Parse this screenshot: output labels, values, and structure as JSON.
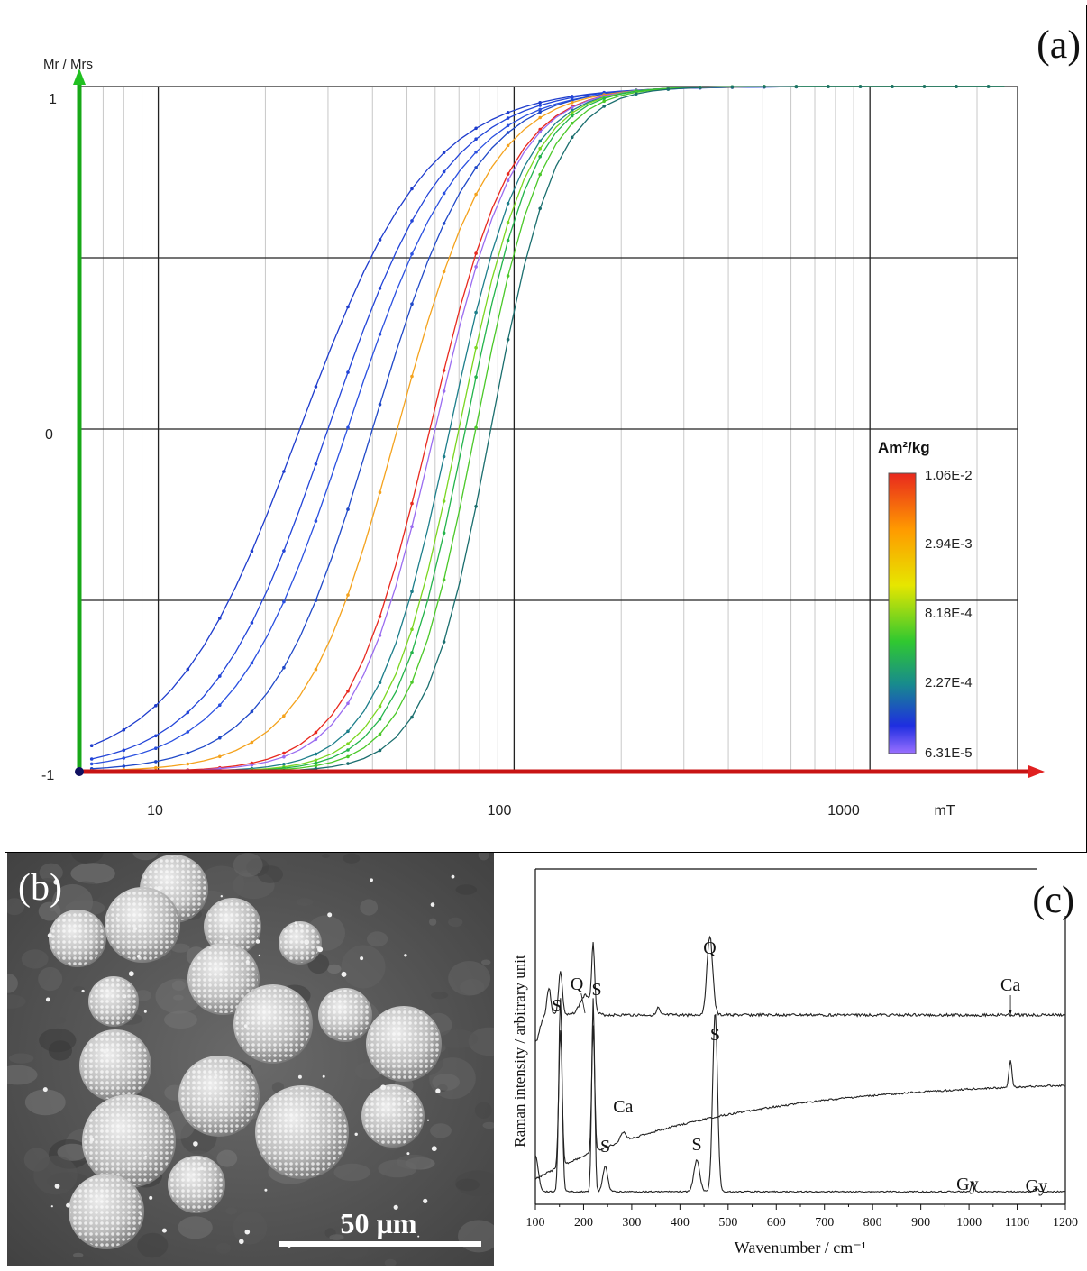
{
  "chart_data": [
    {
      "panel": "(a)",
      "type": "line",
      "ylabel": "Mr / Mrs",
      "xunit": "mT",
      "xscale": "log",
      "xlim": [
        6,
        2600
      ],
      "ylim": [
        -1,
        1
      ],
      "x_ticks": [
        "10",
        "100",
        "1000"
      ],
      "y_ticks": [
        "1",
        "0",
        "-1"
      ],
      "grid": true,
      "colorbar": {
        "title": "Am²/kg",
        "labels": [
          "1.06E-2",
          "2.94E-3",
          "8.18E-4",
          "2.27E-4",
          "6.31E-5"
        ],
        "colors": [
          "#e8281e",
          "#ff8c00",
          "#e8e800",
          "#34c834",
          "#1a8a8a",
          "#1e2ee0",
          "#9a70ff"
        ]
      },
      "series": [
        {
          "color": "#1e3ccd",
          "b": 25,
          "k": 2.4
        },
        {
          "color": "#2244d8",
          "b": 30,
          "k": 2.6
        },
        {
          "color": "#2a50e0",
          "b": 34,
          "k": 2.7
        },
        {
          "color": "#1f48c8",
          "b": 40,
          "k": 3.0
        },
        {
          "color": "#f4a21c",
          "b": 47,
          "k": 3.3
        },
        {
          "color": "#e8281e",
          "b": 58,
          "k": 3.8
        },
        {
          "color": "#1c7e8a",
          "b": 66,
          "k": 4.2
        },
        {
          "color": "#9a6cf0",
          "b": 60,
          "k": 3.9
        },
        {
          "color": "#7ad620",
          "b": 70,
          "k": 4.4
        },
        {
          "color": "#22b44a",
          "b": 73,
          "k": 4.5
        },
        {
          "color": "#4ac828",
          "b": 78,
          "k": 4.6
        },
        {
          "color": "#1a6e6e",
          "b": 86,
          "k": 4.8
        }
      ]
    },
    {
      "panel": "(c)",
      "type": "line",
      "xlabel": "Wavenumber / cm⁻¹",
      "ylabel": "Raman intensity / arbitrary unit",
      "xlim": [
        100,
        1200
      ],
      "x_ticks": [
        "100",
        "200",
        "300",
        "400",
        "500",
        "600",
        "700",
        "800",
        "900",
        "1000",
        "1100",
        "1200"
      ],
      "peak_labels": [
        {
          "text": "Q",
          "x": 462
        },
        {
          "text": "Q",
          "x": 205
        },
        {
          "text": "S",
          "x": 152
        },
        {
          "text": "S",
          "x": 220
        },
        {
          "text": "Ca",
          "x": 1086
        },
        {
          "text": "S",
          "x": 473
        },
        {
          "text": "Ca",
          "x": 282
        },
        {
          "text": "S",
          "x": 245
        },
        {
          "text": "S",
          "x": 435
        },
        {
          "text": "Gy",
          "x": 1008
        },
        {
          "text": "Gy",
          "x": 1140
        }
      ]
    }
  ],
  "panel_b": {
    "label": "(b)",
    "scale_bar_label": "50 µm"
  }
}
